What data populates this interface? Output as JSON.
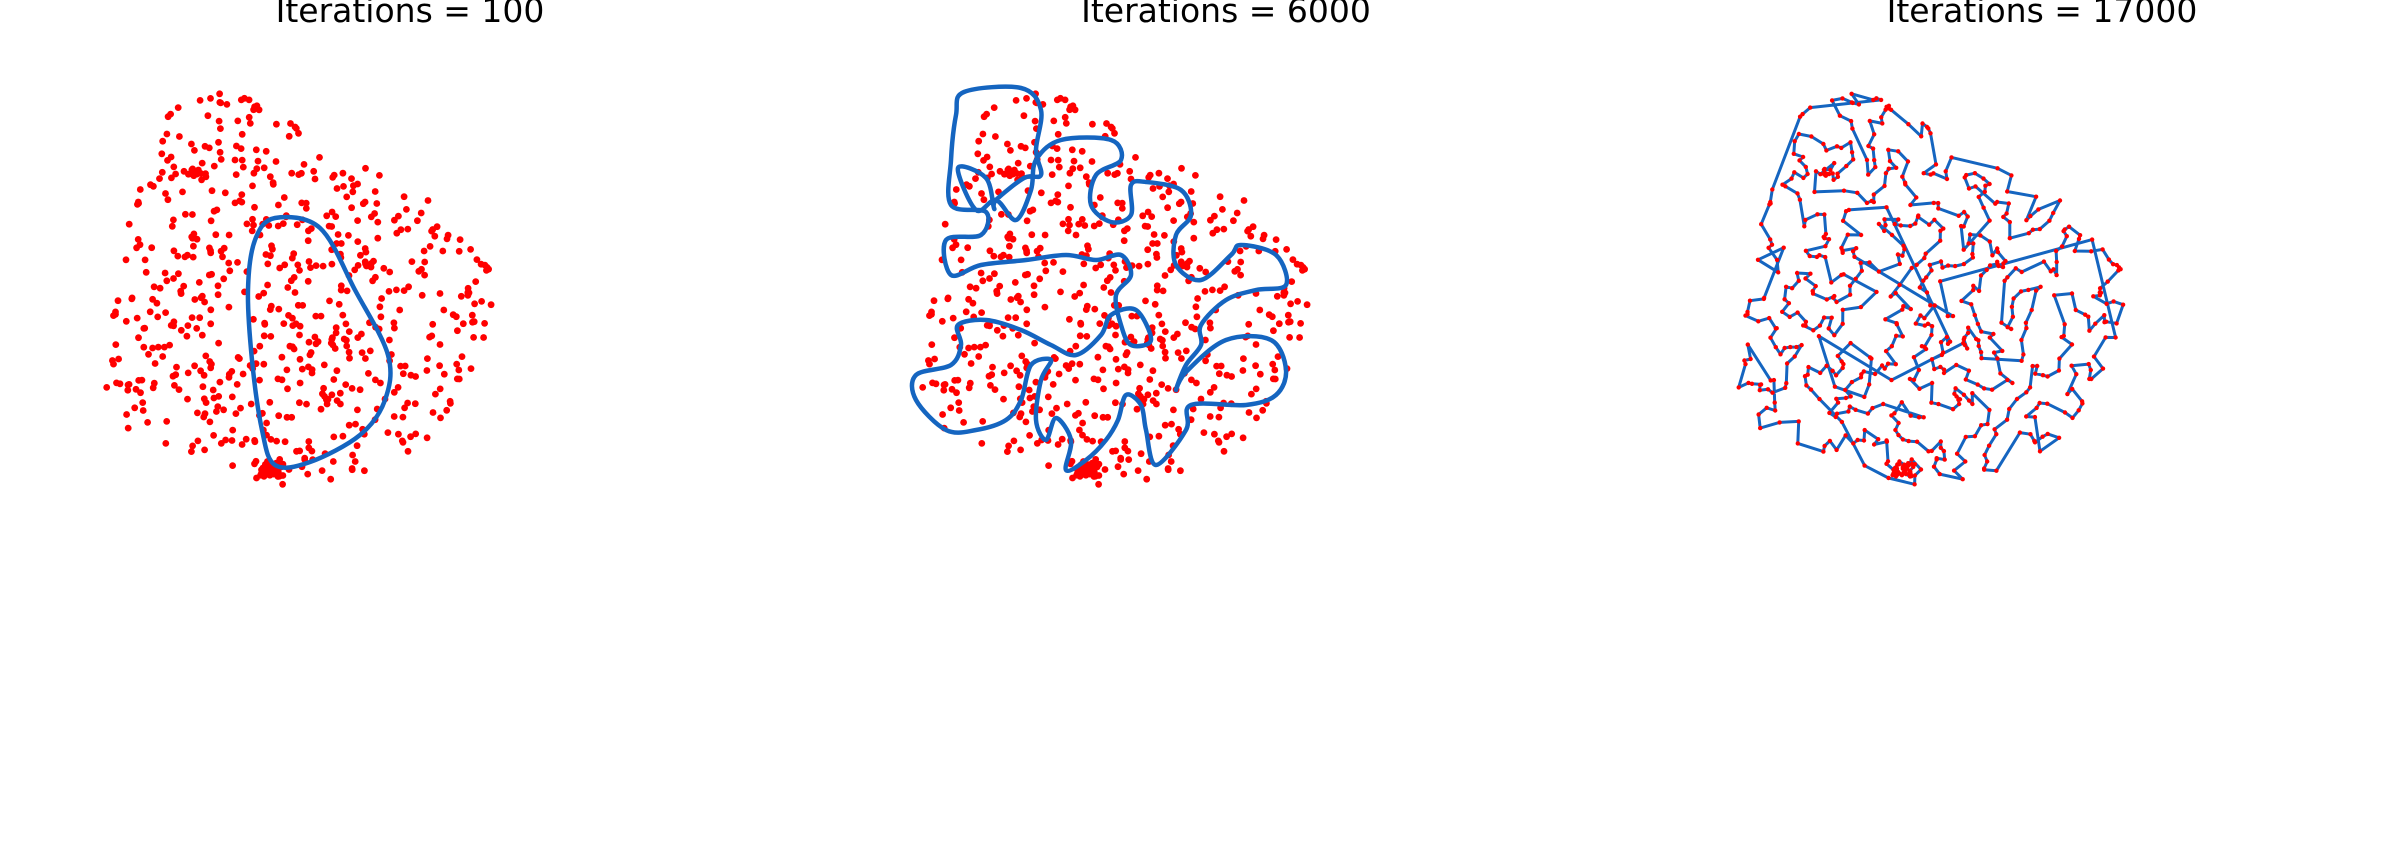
{
  "figure": {
    "point_color": "#ff0000",
    "path_color": "#1565c0"
  },
  "chart_data": [
    {
      "type": "scatter",
      "title": "Iterations = 100",
      "xlabel": "",
      "ylabel": "",
      "axes_visible": false,
      "grid": false,
      "series": [
        {
          "kind": "points",
          "color": "#ff0000",
          "description_ref": "cities"
        },
        {
          "kind": "closed_path",
          "color": "#1565c0",
          "description_ref": "elastic_ring"
        }
      ]
    },
    {
      "type": "scatter",
      "title": "Iterations = 6000",
      "xlabel": "",
      "ylabel": "",
      "axes_visible": false,
      "grid": false,
      "series": [
        {
          "kind": "points",
          "color": "#ff0000",
          "description_ref": "cities"
        },
        {
          "kind": "closed_path",
          "color": "#1565c0",
          "description_ref": "elastic_ring"
        }
      ]
    },
    {
      "type": "scatter",
      "title": "Iterations = 17000",
      "xlabel": "",
      "ylabel": "",
      "axes_visible": false,
      "grid": false,
      "series": [
        {
          "kind": "points",
          "color": "#ff0000",
          "description_ref": "cities"
        },
        {
          "kind": "closed_path",
          "color": "#1565c0",
          "description_ref": "tour"
        }
      ]
    }
  ]
}
